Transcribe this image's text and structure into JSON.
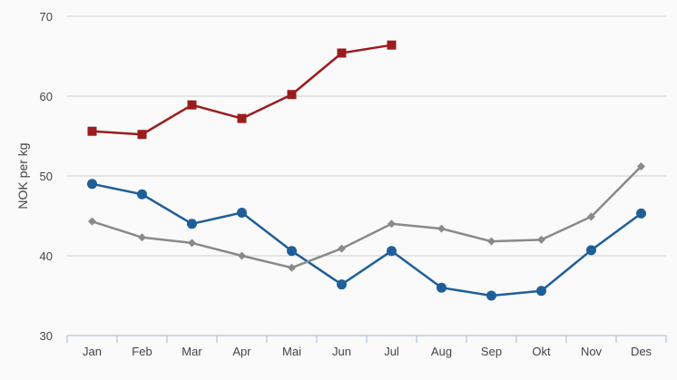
{
  "chart_data": {
    "type": "line",
    "ylabel": "NOK per kg",
    "ylim": [
      30,
      70
    ],
    "yticks": [
      30,
      40,
      50,
      60,
      70
    ],
    "categories": [
      "Jan",
      "Feb",
      "Mar",
      "Apr",
      "Mai",
      "Jun",
      "Jul",
      "Aug",
      "Sep",
      "Okt",
      "Nov",
      "Des"
    ],
    "grid": true,
    "series": [
      {
        "color": "#9b1c1c",
        "marker": "square",
        "values": [
          55.6,
          55.2,
          58.9,
          57.2,
          60.2,
          65.4,
          66.4,
          null,
          null,
          null,
          null,
          null
        ]
      },
      {
        "color": "#1f5f99",
        "marker": "circle",
        "values": [
          49.0,
          47.7,
          44.0,
          45.4,
          40.6,
          36.4,
          40.6,
          36.0,
          35.0,
          35.6,
          40.7,
          45.3
        ]
      },
      {
        "color": "#8a8a8a",
        "marker": "diamond",
        "values": [
          44.3,
          42.3,
          41.6,
          40.0,
          38.5,
          40.9,
          44.0,
          43.4,
          41.8,
          42.0,
          44.9,
          51.2
        ]
      }
    ]
  }
}
